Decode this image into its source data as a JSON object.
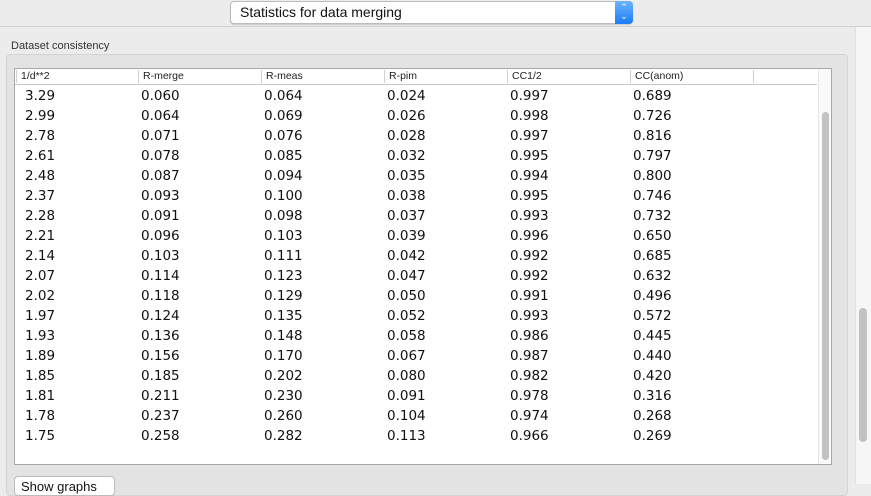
{
  "selector": {
    "value": "Statistics for data merging",
    "icon": "up-down-chevron-icon"
  },
  "group": {
    "title": "Dataset consistency"
  },
  "table": {
    "columns": [
      "1/d**2",
      "R-merge",
      "R-meas",
      "R-pim",
      "CC1/2",
      "CC(anom)"
    ],
    "rows": [
      [
        "3.29",
        "0.060",
        "0.064",
        "0.024",
        "0.997",
        "0.689"
      ],
      [
        "2.99",
        "0.064",
        "0.069",
        "0.026",
        "0.998",
        "0.726"
      ],
      [
        "2.78",
        "0.071",
        "0.076",
        "0.028",
        "0.997",
        "0.816"
      ],
      [
        "2.61",
        "0.078",
        "0.085",
        "0.032",
        "0.995",
        "0.797"
      ],
      [
        "2.48",
        "0.087",
        "0.094",
        "0.035",
        "0.994",
        "0.800"
      ],
      [
        "2.37",
        "0.093",
        "0.100",
        "0.038",
        "0.995",
        "0.746"
      ],
      [
        "2.28",
        "0.091",
        "0.098",
        "0.037",
        "0.993",
        "0.732"
      ],
      [
        "2.21",
        "0.096",
        "0.103",
        "0.039",
        "0.996",
        "0.650"
      ],
      [
        "2.14",
        "0.103",
        "0.111",
        "0.042",
        "0.992",
        "0.685"
      ],
      [
        "2.07",
        "0.114",
        "0.123",
        "0.047",
        "0.992",
        "0.632"
      ],
      [
        "2.02",
        "0.118",
        "0.129",
        "0.050",
        "0.991",
        "0.496"
      ],
      [
        "1.97",
        "0.124",
        "0.135",
        "0.052",
        "0.993",
        "0.572"
      ],
      [
        "1.93",
        "0.136",
        "0.148",
        "0.058",
        "0.986",
        "0.445"
      ],
      [
        "1.89",
        "0.156",
        "0.170",
        "0.067",
        "0.987",
        "0.440"
      ],
      [
        "1.85",
        "0.185",
        "0.202",
        "0.080",
        "0.982",
        "0.420"
      ],
      [
        "1.81",
        "0.211",
        "0.230",
        "0.091",
        "0.978",
        "0.316"
      ],
      [
        "1.78",
        "0.237",
        "0.260",
        "0.104",
        "0.974",
        "0.268"
      ],
      [
        "1.75",
        "0.258",
        "0.282",
        "0.113",
        "0.966",
        "0.269"
      ]
    ]
  },
  "buttons": {
    "show_graphs": "Show graphs"
  },
  "colors": {
    "accent": "#1a7cf5"
  }
}
